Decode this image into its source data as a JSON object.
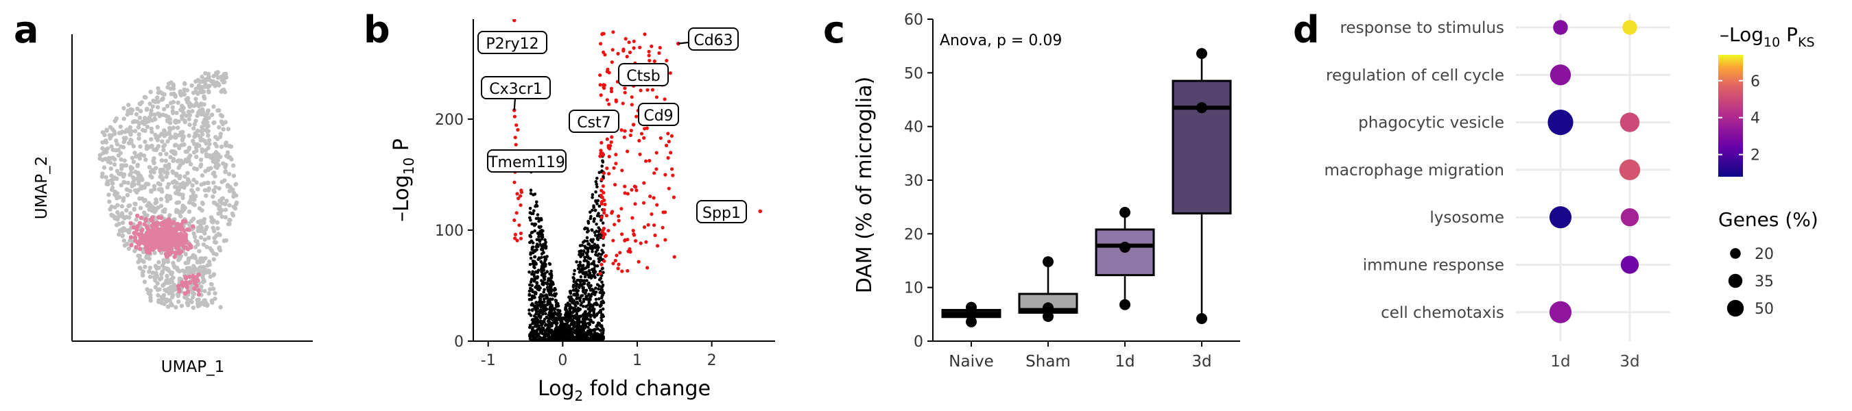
{
  "panels": {
    "a": "a",
    "b": "b",
    "c": "c",
    "d": "d"
  },
  "chart_data": [
    {
      "panel": "a",
      "type": "scatter",
      "title": "",
      "xlabel": "UMAP_1",
      "ylabel": "UMAP_2",
      "colors": {
        "microglia": "#c0c0c0",
        "dam": "#e07fa0"
      }
    },
    {
      "panel": "b",
      "type": "scatter",
      "xlabel": "Log",
      "xlabel_sub": "2",
      "xlabel_suffix": " fold change",
      "ylabel": "–Log",
      "ylabel_sub": "10",
      "ylabel_suffix": " P",
      "xlim": [
        -1.2,
        2.85
      ],
      "ylim": [
        0,
        290
      ],
      "xticks": [
        -1,
        0,
        1,
        2
      ],
      "xtick_labels": [
        "-1",
        "0",
        "1",
        "2"
      ],
      "yticks": [
        0,
        100,
        200
      ],
      "ytick_labels": [
        "0",
        "100",
        "200"
      ],
      "colors": {
        "significant": "#ee1111",
        "other": "#000000"
      },
      "labeled_genes": [
        {
          "label": "P2ry12",
          "x": -0.65,
          "y": 289
        },
        {
          "label": "Cx3cr1",
          "x": -0.65,
          "y": 208
        },
        {
          "label": "Tmem119",
          "x": -0.55,
          "y": 170
        },
        {
          "label": "Cst7",
          "x": 0.55,
          "y": 190
        },
        {
          "label": "Ctsb",
          "x": 0.95,
          "y": 230
        },
        {
          "label": "Cd9",
          "x": 0.95,
          "y": 195
        },
        {
          "label": "Cd63",
          "x": 1.55,
          "y": 268
        },
        {
          "label": "Spp1",
          "x": 2.65,
          "y": 117
        }
      ]
    },
    {
      "panel": "c",
      "type": "box",
      "annotation": "Anova, p = 0.09",
      "ylabel": "DAM (% of microglia)",
      "categories": [
        "Naive",
        "Sham",
        "1d",
        "3d"
      ],
      "ylim": [
        0,
        60
      ],
      "yticks": [
        0,
        10,
        20,
        30,
        40,
        50,
        60
      ],
      "ytick_labels": [
        "0",
        "10",
        "20",
        "30",
        "40",
        "50",
        "60"
      ],
      "boxes": [
        {
          "q1": 4.5,
          "median": 5.0,
          "q3": 5.8,
          "whisker_low": 3.7,
          "whisker_high": 6.3,
          "color": "#111111"
        },
        {
          "q1": 5.3,
          "median": 5.8,
          "q3": 8.8,
          "whisker_low": 4.5,
          "whisker_high": 14.8,
          "color": "#a8a8a8"
        },
        {
          "q1": 12.3,
          "median": 17.8,
          "q3": 20.8,
          "whisker_low": 6.8,
          "whisker_high": 24.0,
          "color": "#8f78a8"
        },
        {
          "q1": 23.8,
          "median": 43.5,
          "q3": 48.5,
          "whisker_low": 4.2,
          "whisker_high": 53.6,
          "color": "#54446e"
        }
      ],
      "points": [
        [
          3.6,
          5.0,
          6.3
        ],
        [
          4.6,
          6.2,
          14.8
        ],
        [
          6.8,
          17.5,
          24.0
        ],
        [
          4.2,
          43.5,
          53.6
        ]
      ]
    },
    {
      "panel": "d",
      "type": "scatter",
      "categories_x": [
        "1d",
        "3d"
      ],
      "terms": [
        "response to stimulus",
        "regulation of cell cycle",
        "phagocytic vesicle",
        "macrophage migration",
        "lysosome",
        "immune response",
        "cell chemotaxis"
      ],
      "points": [
        {
          "term": "response to stimulus",
          "x": "1d",
          "neglog10p": 3.0,
          "genes_pct": 20
        },
        {
          "term": "response to stimulus",
          "x": "3d",
          "neglog10p": 7.2,
          "genes_pct": 20
        },
        {
          "term": "regulation of cell cycle",
          "x": "1d",
          "neglog10p": 3.2,
          "genes_pct": 40
        },
        {
          "term": "phagocytic vesicle",
          "x": "1d",
          "neglog10p": 1.0,
          "genes_pct": 60
        },
        {
          "term": "phagocytic vesicle",
          "x": "3d",
          "neglog10p": 5.0,
          "genes_pct": 35
        },
        {
          "term": "macrophage migration",
          "x": "3d",
          "neglog10p": 5.3,
          "genes_pct": 40
        },
        {
          "term": "lysosome",
          "x": "1d",
          "neglog10p": 1.0,
          "genes_pct": 45
        },
        {
          "term": "lysosome",
          "x": "3d",
          "neglog10p": 3.8,
          "genes_pct": 30
        },
        {
          "term": "immune response",
          "x": "3d",
          "neglog10p": 2.6,
          "genes_pct": 30
        },
        {
          "term": "cell chemotaxis",
          "x": "1d",
          "neglog10p": 3.3,
          "genes_pct": 45
        }
      ],
      "color_legend": {
        "title": "–Log",
        "title_sub": "10",
        "title_suffix": " P",
        "title_sub2": "KS",
        "range": [
          0.8,
          7.4
        ],
        "ticks": [
          2,
          4,
          6
        ],
        "tick_labels": [
          "2",
          "4",
          "6"
        ]
      },
      "size_legend": {
        "title": "Genes (%)",
        "values": [
          20,
          35,
          50
        ],
        "labels": [
          "20",
          "35",
          "50"
        ]
      }
    }
  ]
}
